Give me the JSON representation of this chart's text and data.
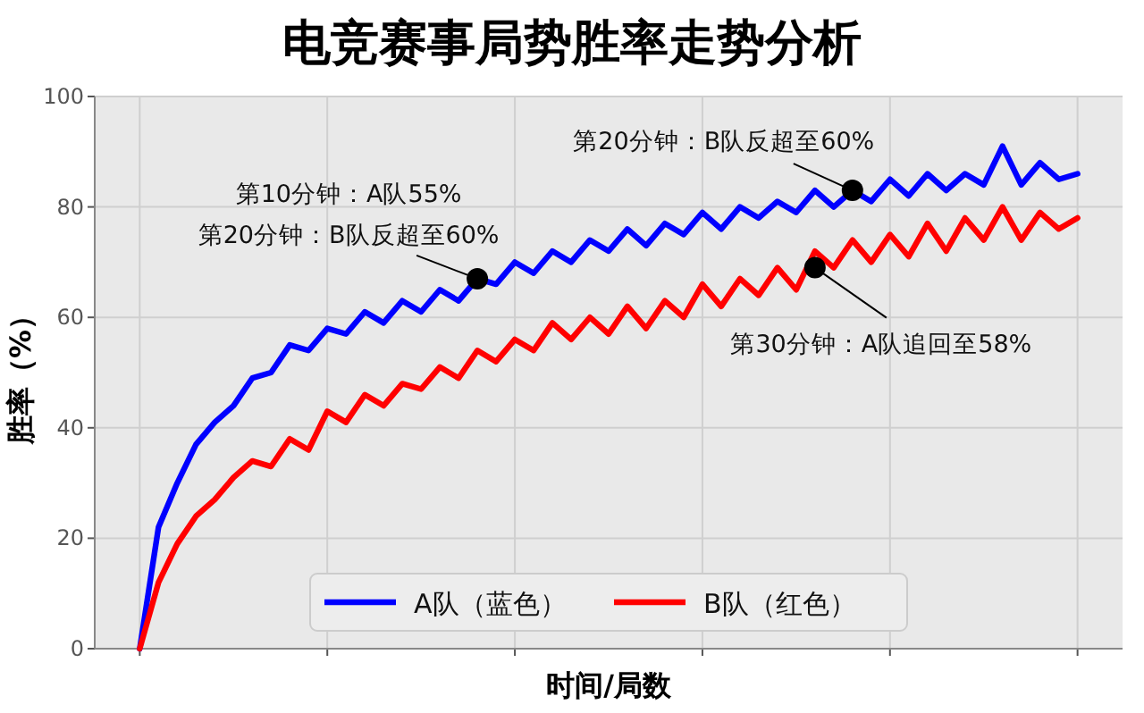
{
  "chart_data": {
    "type": "line",
    "title": "电竞赛事局势胜率走势分析",
    "xlabel": "时间/局数",
    "ylabel": "胜率（%）",
    "categories": [
      null,
      null,
      null,
      null,
      null,
      null,
      null,
      null,
      null,
      null,
      null,
      null,
      null,
      null,
      null,
      null,
      null,
      null,
      null,
      null,
      null,
      null,
      null,
      null,
      null,
      null,
      null,
      null,
      null,
      null,
      null,
      null,
      null,
      null,
      null,
      null,
      null,
      null,
      null,
      null,
      null,
      null,
      null,
      null,
      null,
      null,
      null,
      null,
      null,
      null,
      null
    ],
    "series": [
      {
        "name": "A队（蓝色）",
        "color": "#0000ff",
        "values": [
          0,
          22,
          30,
          37,
          41,
          44,
          49,
          50,
          55,
          54,
          58,
          57,
          61,
          59,
          63,
          61,
          65,
          63,
          67,
          66,
          70,
          68,
          72,
          70,
          74,
          72,
          76,
          73,
          77,
          75,
          79,
          76,
          80,
          78,
          81,
          79,
          83,
          80,
          83,
          81,
          85,
          82,
          86,
          83,
          86,
          84,
          91,
          84,
          88,
          85,
          86
        ]
      },
      {
        "name": "B队（红色）",
        "color": "#ff0000",
        "values": [
          0,
          12,
          19,
          24,
          27,
          31,
          34,
          33,
          38,
          36,
          43,
          41,
          46,
          44,
          48,
          47,
          51,
          49,
          54,
          52,
          56,
          54,
          59,
          56,
          60,
          57,
          62,
          58,
          63,
          60,
          66,
          62,
          67,
          64,
          69,
          65,
          72,
          69,
          74,
          70,
          75,
          71,
          77,
          72,
          78,
          74,
          80,
          74,
          79,
          76,
          78
        ]
      },
      {
        "type": "scatter",
        "marker": "circle",
        "color": "#000000",
        "values": [
          null,
          null,
          null,
          null,
          null,
          null,
          null,
          null,
          null,
          null,
          null,
          null,
          null,
          null,
          null,
          null,
          null,
          null,
          67,
          null,
          null,
          null,
          null,
          null,
          null,
          null,
          null,
          null,
          null,
          null,
          null,
          null,
          null,
          null,
          null,
          null,
          69,
          null,
          83,
          null,
          null,
          null,
          null,
          null,
          null,
          null,
          null,
          null,
          null,
          null,
          null
        ]
      }
    ],
    "ylim": [
      0,
      100
    ],
    "yticks": [
      0,
      20,
      40,
      60,
      80,
      100
    ],
    "annotations": [
      "第10分钟：A队55%\n第20分钟：B队反超至60%",
      "第20分钟：B队反超至60%",
      "第30分钟：A队追回至58%"
    ],
    "grid": true,
    "legend": "bottom",
    "line_style": "solid",
    "marker": "none"
  }
}
